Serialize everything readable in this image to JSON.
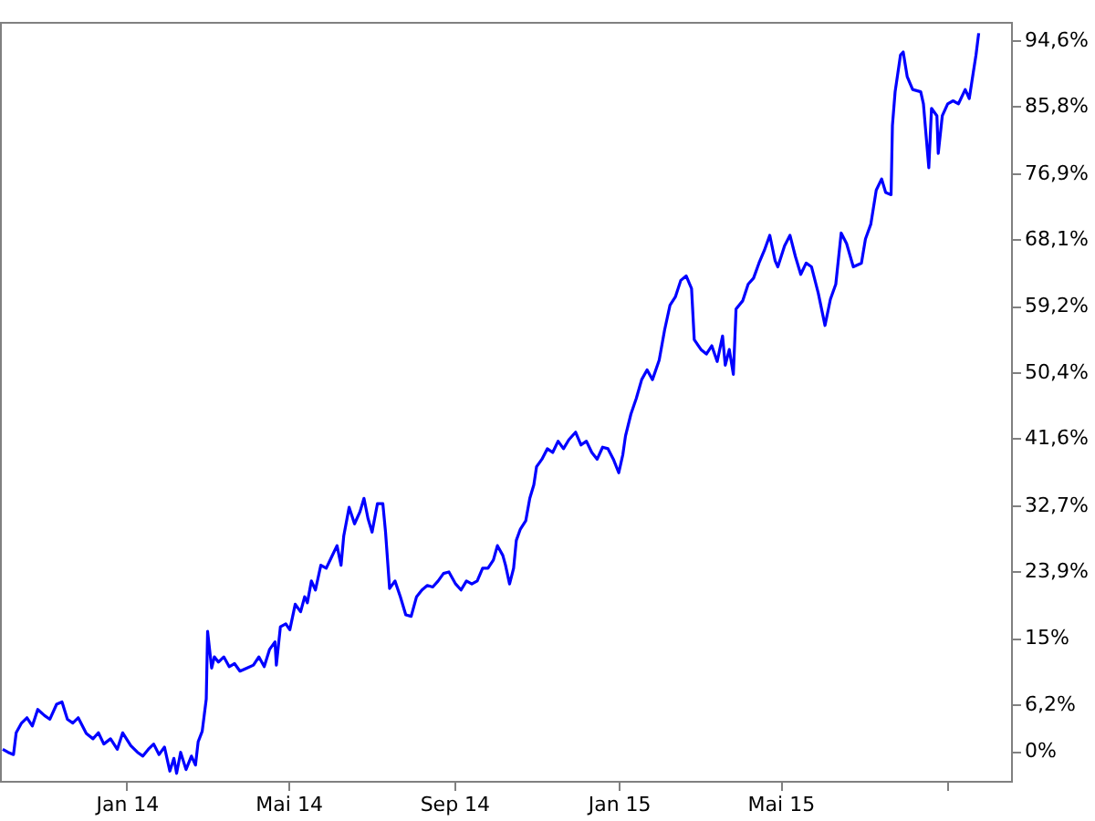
{
  "chart_data": {
    "type": "line",
    "x": [
      "2013-10-01",
      "2013-10-05",
      "2013-10-09",
      "2013-10-11",
      "2013-10-15",
      "2013-10-19",
      "2013-10-23",
      "2013-10-27",
      "2013-11-01",
      "2013-11-05",
      "2013-11-10",
      "2013-11-14",
      "2013-11-18",
      "2013-11-22",
      "2013-11-26",
      "2013-12-02",
      "2013-12-07",
      "2013-12-11",
      "2013-12-15",
      "2013-12-20",
      "2013-12-25",
      "2013-12-29",
      "2014-01-04",
      "2014-01-09",
      "2014-01-13",
      "2014-01-17",
      "2014-01-21",
      "2014-01-25",
      "2014-01-29",
      "2014-02-02",
      "2014-02-05",
      "2014-02-07",
      "2014-02-10",
      "2014-02-14",
      "2014-02-18",
      "2014-02-21",
      "2014-02-23",
      "2014-02-26",
      "2014-03-01",
      "2014-03-02",
      "2014-03-05",
      "2014-03-07",
      "2014-03-10",
      "2014-03-14",
      "2014-03-18",
      "2014-03-22",
      "2014-03-26",
      "2014-03-31",
      "2014-04-05",
      "2014-04-09",
      "2014-04-13",
      "2014-04-17",
      "2014-04-21",
      "2014-04-22",
      "2014-04-25",
      "2014-04-29",
      "2014-05-02",
      "2014-05-06",
      "2014-05-10",
      "2014-05-13",
      "2014-05-15",
      "2014-05-18",
      "2014-05-21",
      "2014-05-25",
      "2014-05-29",
      "2014-06-02",
      "2014-06-06",
      "2014-06-09",
      "2014-06-11",
      "2014-06-15",
      "2014-06-19",
      "2014-06-23",
      "2014-06-26",
      "2014-06-29",
      "2014-07-02",
      "2014-07-06",
      "2014-07-10",
      "2014-07-12",
      "2014-07-15",
      "2014-07-19",
      "2014-07-23",
      "2014-07-27",
      "2014-07-31",
      "2014-08-04",
      "2014-08-08",
      "2014-08-12",
      "2014-08-16",
      "2014-08-20",
      "2014-08-24",
      "2014-08-28",
      "2014-09-02",
      "2014-09-06",
      "2014-09-10",
      "2014-09-14",
      "2014-09-18",
      "2014-09-22",
      "2014-09-26",
      "2014-09-30",
      "2014-10-03",
      "2014-10-07",
      "2014-10-09",
      "2014-10-12",
      "2014-10-15",
      "2014-10-17",
      "2014-10-20",
      "2014-10-24",
      "2014-10-27",
      "2014-10-30",
      "2014-11-01",
      "2014-11-05",
      "2014-11-09",
      "2014-11-13",
      "2014-11-17",
      "2014-11-21",
      "2014-11-25",
      "2014-11-30",
      "2014-12-04",
      "2014-12-08",
      "2014-12-12",
      "2014-12-16",
      "2014-12-20",
      "2014-12-24",
      "2014-12-28",
      "2015-01-01",
      "2015-01-04",
      "2015-01-06",
      "2015-01-10",
      "2015-01-14",
      "2015-01-18",
      "2015-01-22",
      "2015-01-26",
      "2015-01-31",
      "2015-02-04",
      "2015-02-08",
      "2015-02-12",
      "2015-02-16",
      "2015-02-20",
      "2015-02-24",
      "2015-02-26",
      "2015-03-03",
      "2015-03-07",
      "2015-03-11",
      "2015-03-15",
      "2015-03-19",
      "2015-03-21",
      "2015-03-24",
      "2015-03-27",
      "2015-03-29",
      "2015-04-03",
      "2015-04-07",
      "2015-04-11",
      "2015-04-15",
      "2015-04-19",
      "2015-04-23",
      "2015-04-27",
      "2015-04-29",
      "2015-05-04",
      "2015-05-08",
      "2015-05-12",
      "2015-05-16",
      "2015-05-20",
      "2015-05-24",
      "2015-05-29",
      "2015-06-03",
      "2015-06-07",
      "2015-06-11",
      "2015-06-15",
      "2015-06-19",
      "2015-06-24",
      "2015-06-30",
      "2015-07-03",
      "2015-07-07",
      "2015-07-11",
      "2015-07-15",
      "2015-07-18",
      "2015-07-22",
      "2015-07-23",
      "2015-07-25",
      "2015-07-29",
      "2015-07-31",
      "2015-08-03",
      "2015-08-07",
      "2015-08-13",
      "2015-08-15",
      "2015-08-19",
      "2015-08-21",
      "2015-08-25",
      "2015-08-26",
      "2015-08-29",
      "2015-09-02",
      "2015-09-06",
      "2015-09-10",
      "2015-09-15",
      "2015-09-18",
      "2015-09-21",
      "2015-09-23",
      "2015-09-25"
    ],
    "series": [
      {
        "color": "#0000ff",
        "values": [
          0.2,
          -0.2,
          -0.5,
          2.4,
          3.7,
          4.4,
          3.3,
          5.5,
          4.7,
          4.2,
          6.2,
          6.5,
          4.2,
          3.7,
          4.4,
          2.3,
          1.6,
          2.4,
          0.9,
          1.6,
          0.2,
          2.4,
          0.7,
          -0.2,
          -0.7,
          0.2,
          0.9,
          -0.5,
          0.5,
          -2.7,
          -1.0,
          -3.0,
          -0.2,
          -2.5,
          -0.7,
          -1.9,
          1.2,
          2.6,
          6.9,
          15.9,
          11.0,
          12.5,
          11.8,
          12.5,
          11.2,
          11.6,
          10.6,
          11.0,
          11.4,
          12.5,
          11.2,
          13.5,
          14.5,
          11.4,
          16.5,
          16.9,
          16.1,
          19.5,
          18.5,
          20.5,
          19.7,
          22.6,
          21.4,
          24.7,
          24.3,
          25.8,
          27.3,
          24.7,
          28.6,
          32.4,
          30.2,
          31.8,
          33.6,
          30.9,
          29.1,
          32.9,
          32.9,
          29.1,
          21.6,
          22.6,
          20.5,
          18.1,
          17.9,
          20.5,
          21.4,
          22.0,
          21.8,
          22.6,
          23.6,
          23.8,
          22.2,
          21.4,
          22.6,
          22.2,
          22.6,
          24.3,
          24.3,
          25.4,
          27.3,
          26.0,
          24.7,
          22.2,
          24.3,
          28.0,
          29.5,
          30.6,
          33.6,
          35.4,
          37.8,
          38.8,
          40.2,
          39.7,
          41.2,
          40.2,
          41.4,
          42.4,
          40.7,
          41.2,
          39.7,
          38.8,
          40.4,
          40.2,
          38.8,
          37.0,
          39.4,
          41.9,
          44.8,
          46.9,
          49.4,
          50.7,
          49.4,
          52.0,
          56.0,
          59.3,
          60.4,
          62.6,
          63.2,
          61.5,
          54.7,
          53.4,
          52.8,
          53.9,
          51.8,
          55.2,
          51.3,
          53.4,
          50.1,
          58.8,
          59.9,
          62.1,
          62.9,
          64.9,
          66.6,
          68.6,
          65.2,
          64.4,
          67.2,
          68.6,
          65.8,
          63.4,
          64.9,
          64.4,
          60.9,
          56.6,
          60.1,
          62.1,
          68.9,
          67.5,
          64.4,
          64.9,
          68.1,
          70.1,
          74.6,
          76.1,
          74.3,
          74.0,
          83.2,
          87.7,
          92.6,
          93.0,
          89.7,
          88.0,
          87.7,
          86.1,
          77.6,
          85.5,
          84.5,
          79.5,
          84.5,
          86.1,
          86.5,
          86.1,
          88.0,
          86.8,
          90.3,
          92.6,
          95.5
        ]
      }
    ],
    "xlim": [
      "2013-09-29",
      "2015-10-19"
    ],
    "xticks": [
      {
        "value": "2014-01-01",
        "label": "Jan 14"
      },
      {
        "value": "2014-05-01",
        "label": "Mai 14"
      },
      {
        "value": "2014-09-01",
        "label": "Sep 14"
      },
      {
        "value": "2015-01-01",
        "label": "Jan 15"
      },
      {
        "value": "2015-05-01",
        "label": "Mai 15"
      },
      {
        "value": "2015-09-01",
        "label": null
      }
    ],
    "ylim": [
      -4,
      97
    ],
    "yticks": [
      {
        "value": 0,
        "label": "0%"
      },
      {
        "value": 6.2,
        "label": "6,2%"
      },
      {
        "value": 15,
        "label": "15%"
      },
      {
        "value": 23.9,
        "label": "23,9%"
      },
      {
        "value": 32.7,
        "label": "32,7%"
      },
      {
        "value": 41.6,
        "label": "41,6%"
      },
      {
        "value": 50.4,
        "label": "50,4%"
      },
      {
        "value": 59.2,
        "label": "59,2%"
      },
      {
        "value": 68.1,
        "label": "68,1%"
      },
      {
        "value": 76.9,
        "label": "76,9%"
      },
      {
        "value": 85.8,
        "label": "85,8%"
      },
      {
        "value": 94.6,
        "label": "94,6%"
      }
    ],
    "grid": false,
    "legend": false,
    "marker": "none",
    "line_style": "solid"
  }
}
